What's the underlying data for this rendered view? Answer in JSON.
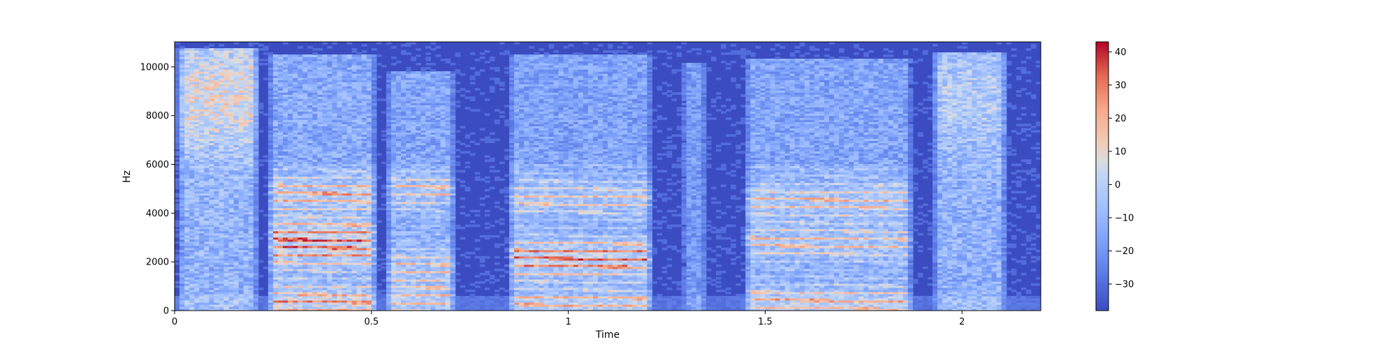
{
  "chart_data": {
    "type": "heatmap",
    "title": "",
    "xlabel": "Time",
    "ylabel": "Hz",
    "xlim": [
      0,
      2.2
    ],
    "ylim": [
      0,
      11025
    ],
    "x_ticks": [
      0,
      0.5,
      1,
      1.5,
      2
    ],
    "x_tick_labels": [
      "0",
      "0.5",
      "1",
      "1.5",
      "2"
    ],
    "y_ticks": [
      0,
      2000,
      4000,
      6000,
      8000,
      10000
    ],
    "y_tick_labels": [
      "0",
      "2000",
      "4000",
      "6000",
      "8000",
      "10000"
    ],
    "colorbar": {
      "colormap": "coolwarm",
      "range": [
        -38,
        43
      ],
      "ticks": [
        -30,
        -20,
        -10,
        0,
        10,
        20,
        30,
        40
      ],
      "tick_labels": [
        "−30",
        "−20",
        "−10",
        "0",
        "10",
        "20",
        "30",
        "40"
      ]
    },
    "segments": [
      {
        "t_start": 0.0,
        "t_end": 0.22,
        "description": "broadband energy, warmer 8–10 kHz"
      },
      {
        "t_start": 0.23,
        "t_end": 0.52,
        "description": "voiced harmonics with strong bands at ~0.4, 2.4, 3.2, 4.8 kHz"
      },
      {
        "t_start": 0.53,
        "t_end": 0.72,
        "description": "voiced, formant near 5 kHz"
      },
      {
        "t_start": 0.84,
        "t_end": 1.22,
        "description": "long voiced segment, harmonics to 5 kHz"
      },
      {
        "t_start": 1.28,
        "t_end": 1.36,
        "description": "short broadband burst"
      },
      {
        "t_start": 1.44,
        "t_end": 1.88,
        "description": "voiced, formant near 4.5 kHz"
      },
      {
        "t_start": 1.92,
        "t_end": 2.12,
        "description": "high-frequency fricative 5–10.5 kHz"
      }
    ]
  }
}
